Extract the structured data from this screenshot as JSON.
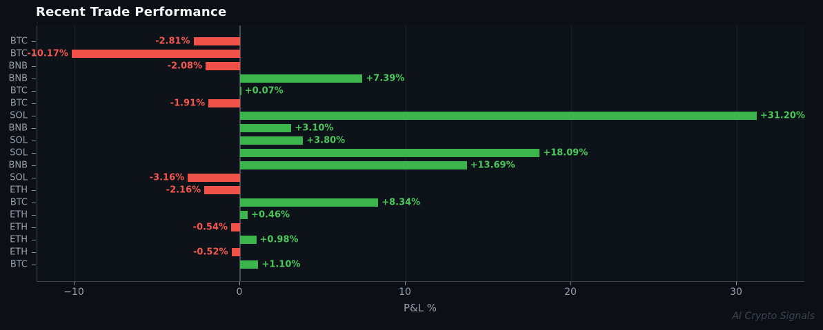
{
  "page": {
    "title": "Recent Trade Performance",
    "watermark": "AI Crypto Signals"
  },
  "colors": {
    "background": "#0c0f15",
    "plot_background": "#0e1219",
    "positive_bar": "#3cb54c",
    "positive_label": "#4bc75a",
    "negative_bar": "#f0524a",
    "negative_label": "#f4574e",
    "axis_text": "#99a1ab",
    "tick": "#8b929c",
    "spine": "#3e444e",
    "gridline": "#1a1f28",
    "zero_line": "#4a505b",
    "title_text": "#f2f4f6",
    "watermark_text": "#3d4450"
  },
  "chart_data": {
    "type": "bar",
    "orientation": "horizontal",
    "title": "Recent Trade Performance",
    "xlabel": "P&L %",
    "ylabel": "",
    "xlim": [
      -12.25,
      34.08
    ],
    "xticks": [
      -10,
      0,
      10,
      20,
      30
    ],
    "xtick_labels": [
      "−10",
      "0",
      "10",
      "20",
      "30"
    ],
    "grid": "vertical-faint",
    "legend": "none",
    "rows": [
      {
        "coin": "BTC",
        "pnl": -2.81,
        "label": "-2.81%"
      },
      {
        "coin": "BTC",
        "pnl": -10.17,
        "label": "-10.17%"
      },
      {
        "coin": "BNB",
        "pnl": -2.08,
        "label": "-2.08%"
      },
      {
        "coin": "BNB",
        "pnl": 7.39,
        "label": "+7.39%"
      },
      {
        "coin": "BTC",
        "pnl": 0.07,
        "label": "+0.07%"
      },
      {
        "coin": "BTC",
        "pnl": -1.91,
        "label": "-1.91%"
      },
      {
        "coin": "SOL",
        "pnl": 31.2,
        "label": "+31.20%"
      },
      {
        "coin": "BNB",
        "pnl": 3.1,
        "label": "+3.10%"
      },
      {
        "coin": "SOL",
        "pnl": 3.8,
        "label": "+3.80%"
      },
      {
        "coin": "SOL",
        "pnl": 18.09,
        "label": "+18.09%"
      },
      {
        "coin": "BNB",
        "pnl": 13.69,
        "label": "+13.69%"
      },
      {
        "coin": "SOL",
        "pnl": -3.16,
        "label": "-3.16%"
      },
      {
        "coin": "ETH",
        "pnl": -2.16,
        "label": "-2.16%"
      },
      {
        "coin": "BTC",
        "pnl": 8.34,
        "label": "+8.34%"
      },
      {
        "coin": "ETH",
        "pnl": 0.46,
        "label": "+0.46%"
      },
      {
        "coin": "ETH",
        "pnl": -0.54,
        "label": "-0.54%"
      },
      {
        "coin": "ETH",
        "pnl": 0.98,
        "label": "+0.98%"
      },
      {
        "coin": "ETH",
        "pnl": -0.52,
        "label": "-0.52%"
      },
      {
        "coin": "BTC",
        "pnl": 1.1,
        "label": "+1.10%"
      }
    ]
  }
}
